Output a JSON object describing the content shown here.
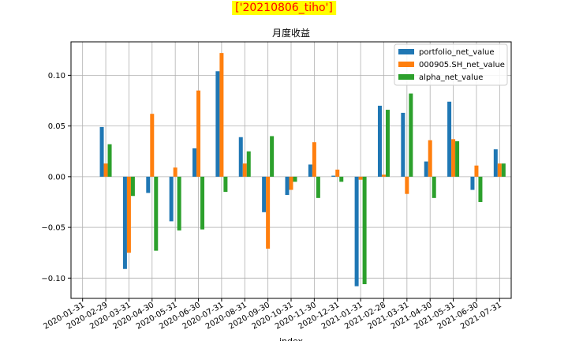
{
  "suptitle": "['20210806_tiho']",
  "chart_data": {
    "type": "bar",
    "title": "月度收益",
    "xlabel": "index",
    "ylabel": "",
    "ylim": [
      -0.12,
      0.133
    ],
    "yticks": [
      -0.1,
      -0.05,
      0.0,
      0.05,
      0.1
    ],
    "ytick_labels": [
      "−0.10",
      "−0.05",
      "0.00",
      "0.05",
      "0.10"
    ],
    "grid": true,
    "legend_position": "top-right",
    "categories": [
      "2020-01-31",
      "2020-02-29",
      "2020-03-31",
      "2020-04-30",
      "2020-05-31",
      "2020-06-30",
      "2020-07-31",
      "2020-08-31",
      "2020-09-30",
      "2020-10-31",
      "2020-11-30",
      "2020-12-31",
      "2021-01-31",
      "2021-02-28",
      "2021-03-31",
      "2021-04-30",
      "2021-05-31",
      "2021-06-30",
      "2021-07-31"
    ],
    "series": [
      {
        "name": "portfolio_net_value",
        "color": "#1f77b4",
        "values": [
          null,
          0.049,
          -0.091,
          -0.016,
          -0.044,
          0.028,
          0.104,
          0.039,
          -0.035,
          -0.018,
          0.012,
          0.001,
          -0.108,
          0.07,
          0.063,
          0.015,
          0.074,
          -0.013,
          0.027
        ]
      },
      {
        "name": "000905.SH_net_value",
        "color": "#ff7f0e",
        "values": [
          null,
          0.013,
          -0.075,
          0.062,
          0.009,
          0.085,
          0.122,
          0.013,
          -0.071,
          -0.013,
          0.034,
          0.007,
          -0.003,
          0.002,
          -0.017,
          0.036,
          0.037,
          0.011,
          0.013
        ]
      },
      {
        "name": "alpha_net_value",
        "color": "#2ca02c",
        "values": [
          null,
          0.032,
          -0.019,
          -0.073,
          -0.053,
          -0.052,
          -0.015,
          0.025,
          0.04,
          -0.005,
          -0.021,
          -0.005,
          -0.106,
          0.066,
          0.082,
          -0.021,
          0.035,
          -0.025,
          0.013
        ]
      }
    ]
  }
}
